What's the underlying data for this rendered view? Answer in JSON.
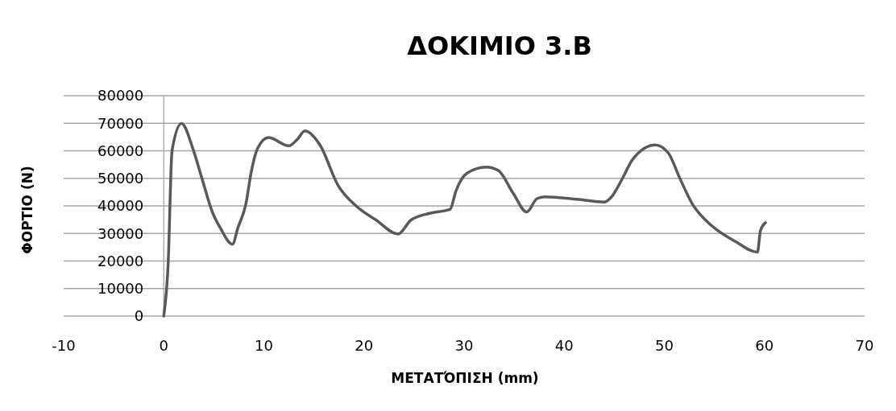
{
  "chart_data": {
    "type": "line",
    "title": "ΔΟΚΙΜΙΟ 3.Β",
    "xlabel": "ΜΕΤΑΤΌΠΙΣΗ (mm)",
    "ylabel": "ΦΟΡΤΙΟ (N)",
    "xlim": [
      -10,
      70
    ],
    "xticks": [
      -10,
      0,
      10,
      20,
      30,
      40,
      50,
      60,
      70
    ],
    "ylim": [
      0,
      80000
    ],
    "yticks": [
      0,
      10000,
      20000,
      30000,
      40000,
      50000,
      60000,
      70000,
      80000
    ],
    "grid": "y",
    "line_style": "solid",
    "series": [
      {
        "color": "#595959",
        "x": [
          0,
          0.43,
          0.83,
          1.77,
          2.97,
          3.78,
          4.85,
          5.65,
          6.86,
          7.4,
          8.2,
          8.74,
          9.4,
          10.47,
          12.5,
          13.3,
          14.1,
          15.6,
          17.4,
          19.3,
          21.2,
          23.4,
          24.7,
          26.55,
          28.6,
          29.2,
          30.3,
          32.2,
          33.4,
          34.9,
          36.25,
          37.3,
          38.1,
          41.3,
          44.0,
          44.8,
          45.6,
          46.9,
          49.1,
          50.4,
          51.5,
          52.8,
          54.7,
          57.1,
          59.3,
          59.6,
          60.1
        ],
        "values": [
          0,
          18400,
          60100,
          69900,
          60100,
          50400,
          37800,
          32000,
          26100,
          32000,
          40700,
          52400,
          61100,
          64800,
          61800,
          64000,
          67200,
          62100,
          47500,
          39700,
          34900,
          29800,
          34900,
          37300,
          38800,
          45600,
          51900,
          54100,
          52900,
          44600,
          37800,
          42700,
          43300,
          42400,
          41400,
          43600,
          48500,
          57200,
          62100,
          59200,
          50400,
          40700,
          32900,
          27100,
          23200,
          31000,
          33900
        ]
      }
    ]
  }
}
